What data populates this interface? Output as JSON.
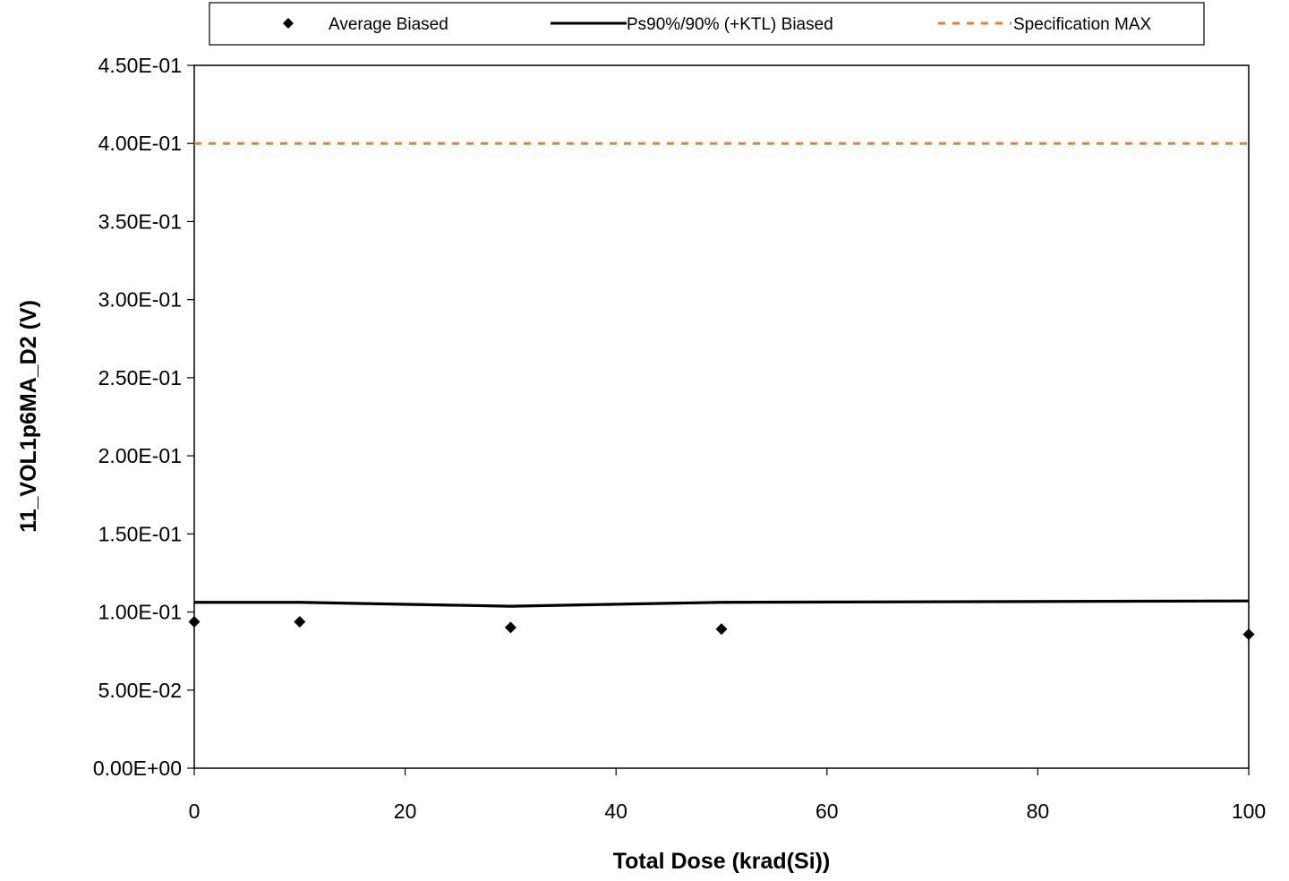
{
  "chart_data": {
    "type": "scatter",
    "title": "",
    "xlabel": "Total Dose (krad(Si))",
    "ylabel": "11_VOL1p6MA_D2 (V)",
    "xlim": [
      0,
      100
    ],
    "ylim": [
      0,
      0.45
    ],
    "x_ticks": [
      0,
      20,
      40,
      60,
      80,
      100
    ],
    "x_tick_labels": [
      "0",
      "20",
      "40",
      "60",
      "80",
      "100"
    ],
    "y_ticks": [
      0,
      0.05,
      0.1,
      0.15,
      0.2,
      0.25,
      0.3,
      0.35,
      0.4,
      0.45
    ],
    "y_tick_labels": [
      "0.00E+00",
      "5.00E-02",
      "1.00E-01",
      "1.50E-01",
      "2.00E-01",
      "2.50E-01",
      "3.00E-01",
      "3.50E-01",
      "4.00E-01",
      "4.50E-01"
    ],
    "grid": false,
    "legend_position": "top",
    "series": [
      {
        "name": "Average Biased",
        "style": "marker",
        "marker": "diamond",
        "color": "#000000",
        "x": [
          0,
          10,
          30,
          50,
          100
        ],
        "y": [
          0.0937,
          0.0937,
          0.0901,
          0.0891,
          0.0857
        ]
      },
      {
        "name": "Ps90%/90% (+KTL) Biased",
        "style": "line",
        "color": "#000000",
        "x": [
          0,
          10,
          30,
          50,
          100
        ],
        "y": [
          0.1062,
          0.1062,
          0.1037,
          0.1062,
          0.1071
        ]
      },
      {
        "name": "Specification MAX",
        "style": "dashed",
        "color": "#ED7D31",
        "x": [
          0,
          100
        ],
        "y": [
          0.4,
          0.4
        ]
      }
    ]
  }
}
